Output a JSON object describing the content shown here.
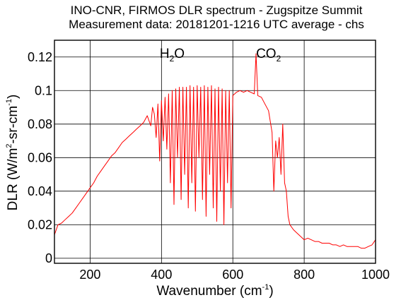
{
  "chart_data": {
    "type": "line",
    "title": "INO-CNR, FIRMOS DLR spectrum - Zugspitze Summit",
    "subtitle": "Measurement data: 20181201-1216 UTC average - chs",
    "xlabel": {
      "text": "Wavenumber (cm",
      "sup": "-1",
      "tail": ")"
    },
    "ylabel": {
      "pre": "DLR (W/m",
      "sup1": "2",
      "mid": "-sr-cm",
      "sup2": "-1",
      "tail": ")"
    },
    "xlim": [
      100,
      1000
    ],
    "ylim": [
      -0.003,
      0.13
    ],
    "x_ticks": [
      200,
      400,
      600,
      800,
      1000
    ],
    "x_tick_labels": [
      "200",
      "400",
      "600",
      "800",
      "1000"
    ],
    "y_ticks": [
      0,
      0.02,
      0.04,
      0.06,
      0.08,
      0.1,
      0.12
    ],
    "y_tick_labels": [
      "0",
      "0.02",
      "0.04",
      "0.06",
      "0.08",
      "0.1",
      "0.12"
    ],
    "grid": true,
    "annotations": [
      {
        "base": "H",
        "sub": "2",
        "tail": "O",
        "x": 430,
        "y": 0.122
      },
      {
        "base": "CO",
        "sub": "2",
        "tail": "",
        "x": 700,
        "y": 0.122
      }
    ],
    "series": [
      {
        "color": "#ff0000",
        "x": [
          100,
          110,
          120,
          130,
          140,
          150,
          160,
          170,
          180,
          190,
          200,
          210,
          220,
          230,
          240,
          250,
          260,
          270,
          280,
          290,
          300,
          310,
          320,
          330,
          340,
          350,
          360,
          370,
          375,
          380,
          385,
          390,
          395,
          400,
          405,
          410,
          415,
          420,
          425,
          430,
          435,
          440,
          445,
          450,
          455,
          460,
          465,
          470,
          475,
          480,
          485,
          490,
          495,
          500,
          505,
          510,
          515,
          520,
          525,
          530,
          535,
          540,
          545,
          550,
          555,
          560,
          565,
          570,
          575,
          580,
          585,
          590,
          595,
          600,
          610,
          620,
          630,
          640,
          650,
          660,
          665,
          670,
          680,
          690,
          700,
          710,
          715,
          720,
          725,
          730,
          735,
          740,
          745,
          750,
          755,
          760,
          770,
          780,
          790,
          800,
          810,
          820,
          830,
          840,
          850,
          860,
          870,
          880,
          890,
          900,
          910,
          920,
          930,
          940,
          950,
          960,
          970,
          980,
          990,
          1000
        ],
        "y": [
          0.014,
          0.02,
          0.021,
          0.023,
          0.025,
          0.027,
          0.03,
          0.033,
          0.036,
          0.039,
          0.042,
          0.045,
          0.049,
          0.052,
          0.055,
          0.058,
          0.061,
          0.063,
          0.066,
          0.069,
          0.071,
          0.073,
          0.075,
          0.077,
          0.079,
          0.081,
          0.085,
          0.079,
          0.09,
          0.086,
          0.072,
          0.092,
          0.058,
          0.094,
          0.07,
          0.096,
          0.065,
          0.098,
          0.045,
          0.1,
          0.032,
          0.101,
          0.06,
          0.102,
          0.035,
          0.102,
          0.05,
          0.102,
          0.03,
          0.103,
          0.045,
          0.102,
          0.028,
          0.103,
          0.06,
          0.102,
          0.035,
          0.103,
          0.025,
          0.102,
          0.05,
          0.103,
          0.03,
          0.101,
          0.022,
          0.102,
          0.04,
          0.101,
          0.02,
          0.1,
          0.045,
          0.1,
          0.03,
          0.097,
          0.099,
          0.1,
          0.099,
          0.1,
          0.099,
          0.098,
          0.122,
          0.097,
          0.096,
          0.092,
          0.088,
          0.075,
          0.04,
          0.07,
          0.06,
          0.072,
          0.05,
          0.08,
          0.045,
          0.04,
          0.025,
          0.02,
          0.017,
          0.015,
          0.013,
          0.011,
          0.012,
          0.011,
          0.01,
          0.01,
          0.009,
          0.009,
          0.009,
          0.008,
          0.008,
          0.007,
          0.008,
          0.007,
          0.007,
          0.007,
          0.007,
          0.006,
          0.006,
          0.007,
          0.008,
          0.011
        ]
      }
    ]
  }
}
